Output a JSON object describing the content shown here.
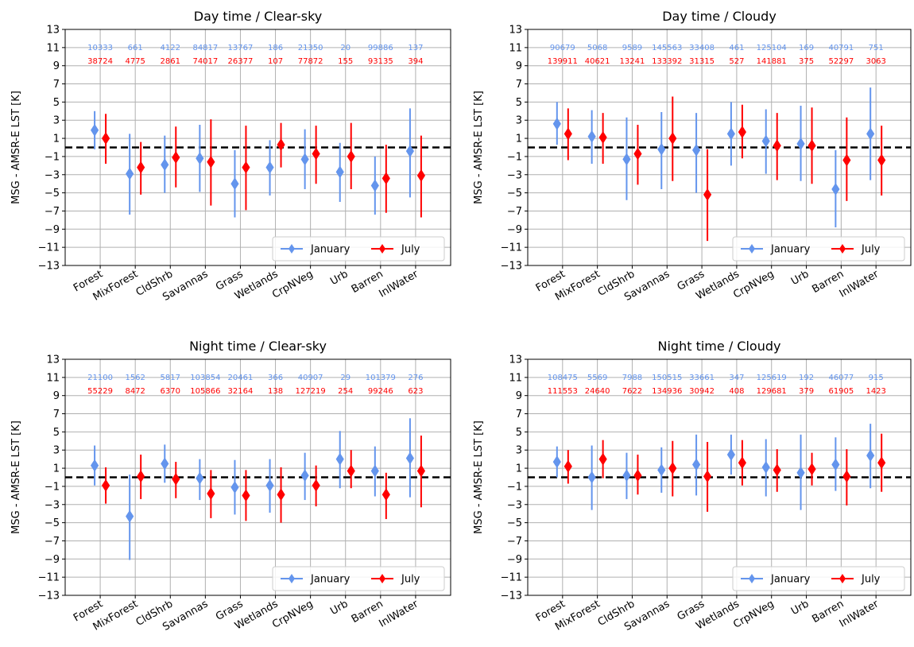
{
  "colors": {
    "january": "#6495ED",
    "july": "#FF0000",
    "grid": "#b0b0b0",
    "zero_line": "#000000"
  },
  "chart_data": [
    {
      "type": "scatter",
      "title": "Day time / Clear-sky",
      "ylabel": "MSG - AMSR-E LST [K]",
      "ylim": [
        -13,
        13
      ],
      "yticks": [
        "13",
        "11",
        "9",
        "7",
        "5",
        "3",
        "1",
        "−1",
        "−3",
        "−5",
        "−7",
        "−9",
        "−11",
        "−13"
      ],
      "categories": [
        "Forest",
        "MixForest",
        "CldShrb",
        "Savannas",
        "Grass",
        "Wetlands",
        "CrpNVeg",
        "Urb",
        "Barren",
        "InlWater"
      ],
      "grid": true,
      "reference_line": 0,
      "legend_position": "lower-right",
      "series": [
        {
          "name": "January",
          "mean": [
            1.9,
            -2.9,
            -1.9,
            -1.2,
            -4.0,
            -2.2,
            -1.3,
            -2.7,
            -4.2,
            -0.4
          ],
          "lower": [
            -0.2,
            -7.4,
            -5.0,
            -4.9,
            -7.7,
            -5.3,
            -4.6,
            -6.0,
            -7.4,
            -5.5
          ],
          "upper": [
            4.0,
            1.5,
            1.3,
            2.5,
            -0.3,
            0.8,
            2.0,
            0.5,
            -1.0,
            4.3
          ],
          "counts": [
            "10333",
            "661",
            "4122",
            "84817",
            "13767",
            "186",
            "21350",
            "20",
            "99886",
            "137"
          ]
        },
        {
          "name": "July",
          "mean": [
            1.0,
            -2.2,
            -1.1,
            -1.6,
            -2.2,
            0.3,
            -0.7,
            -1.0,
            -3.4,
            -3.1
          ],
          "lower": [
            -1.8,
            -5.2,
            -4.4,
            -6.4,
            -6.9,
            -2.2,
            -4.0,
            -4.6,
            -7.2,
            -7.7
          ],
          "upper": [
            3.7,
            0.6,
            2.3,
            3.1,
            2.4,
            2.7,
            2.4,
            2.7,
            0.3,
            1.3
          ],
          "counts": [
            "38724",
            "4775",
            "2861",
            "74017",
            "26377",
            "107",
            "77872",
            "155",
            "93135",
            "394"
          ]
        }
      ]
    },
    {
      "type": "scatter",
      "title": "Day time / Cloudy",
      "ylabel": "MSG - AMSR-E LST [K]",
      "ylim": [
        -13,
        13
      ],
      "yticks": [
        "13",
        "11",
        "9",
        "7",
        "5",
        "3",
        "1",
        "−1",
        "−3",
        "−5",
        "−7",
        "−9",
        "−11",
        "−13"
      ],
      "categories": [
        "Forest",
        "MixForest",
        "CldShrb",
        "Savannas",
        "Grass",
        "Wetlands",
        "CrpNVeg",
        "Urb",
        "Barren",
        "InlWater"
      ],
      "grid": true,
      "reference_line": 0,
      "legend_position": "lower-right",
      "series": [
        {
          "name": "January",
          "mean": [
            2.6,
            1.2,
            -1.3,
            -0.2,
            -0.3,
            1.5,
            0.7,
            0.4,
            -4.6,
            1.5
          ],
          "lower": [
            0.3,
            -1.8,
            -5.8,
            -4.6,
            -5.0,
            -2.0,
            -2.9,
            -3.7,
            -8.8,
            -3.6
          ],
          "upper": [
            5.0,
            4.1,
            3.3,
            3.9,
            3.8,
            5.0,
            4.2,
            4.6,
            -0.3,
            6.6
          ],
          "counts": [
            "90679",
            "5068",
            "9589",
            "145563",
            "33408",
            "461",
            "125104",
            "169",
            "40791",
            "751"
          ]
        },
        {
          "name": "July",
          "mean": [
            1.5,
            1.1,
            -0.7,
            1.0,
            -5.2,
            1.7,
            0.2,
            0.2,
            -1.4,
            -1.4
          ],
          "lower": [
            -1.4,
            -1.8,
            -4.1,
            -3.7,
            -10.3,
            -1.2,
            -3.6,
            -4.0,
            -5.9,
            -5.3
          ],
          "upper": [
            4.3,
            3.8,
            2.5,
            5.6,
            -0.2,
            4.7,
            3.8,
            4.4,
            3.3,
            2.4
          ],
          "counts": [
            "139911",
            "40621",
            "13241",
            "133392",
            "31315",
            "527",
            "141881",
            "375",
            "52297",
            "3063"
          ]
        }
      ]
    },
    {
      "type": "scatter",
      "title": "Night time / Clear-sky",
      "ylabel": "MSG - AMSR-E LST [K]",
      "ylim": [
        -13,
        13
      ],
      "yticks": [
        "13",
        "11",
        "9",
        "7",
        "5",
        "3",
        "1",
        "−1",
        "−3",
        "−5",
        "−7",
        "−9",
        "−11",
        "−13"
      ],
      "categories": [
        "Forest",
        "MixForest",
        "CldShrb",
        "Savannas",
        "Grass",
        "Wetlands",
        "CrpNVeg",
        "Urb",
        "Barren",
        "InlWater"
      ],
      "grid": true,
      "reference_line": 0,
      "legend_position": "lower-right",
      "series": [
        {
          "name": "January",
          "mean": [
            1.3,
            -4.3,
            1.5,
            -0.1,
            -1.1,
            -0.9,
            0.2,
            2.0,
            0.7,
            2.1
          ],
          "lower": [
            -0.9,
            -9.1,
            -0.6,
            -2.5,
            -4.1,
            -3.9,
            -2.5,
            -1.2,
            -2.1,
            -2.2
          ],
          "upper": [
            3.5,
            0.3,
            3.6,
            2.0,
            1.9,
            2.0,
            2.7,
            5.1,
            3.4,
            6.5
          ],
          "counts": [
            "21100",
            "1562",
            "5817",
            "103854",
            "20461",
            "366",
            "40907",
            "29",
            "101379",
            "276"
          ]
        },
        {
          "name": "July",
          "mean": [
            -0.9,
            0.1,
            -0.2,
            -1.8,
            -2.0,
            -1.9,
            -0.9,
            0.7,
            -1.9,
            0.7
          ],
          "lower": [
            -2.9,
            -2.4,
            -2.3,
            -4.5,
            -4.8,
            -5.0,
            -3.2,
            -1.2,
            -4.6,
            -3.3
          ],
          "upper": [
            1.1,
            2.5,
            1.7,
            0.8,
            0.8,
            1.1,
            1.3,
            3.0,
            0.5,
            4.6
          ],
          "counts": [
            "55229",
            "8472",
            "6370",
            "105866",
            "32164",
            "138",
            "127219",
            "254",
            "99246",
            "623"
          ]
        }
      ]
    },
    {
      "type": "scatter",
      "title": "Night time / Cloudy",
      "ylabel": "MSG - AMSR-E LST [K]",
      "ylim": [
        -13,
        13
      ],
      "yticks": [
        "13",
        "11",
        "9",
        "7",
        "5",
        "3",
        "1",
        "−1",
        "−3",
        "−5",
        "−7",
        "−9",
        "−11",
        "−13"
      ],
      "categories": [
        "Forest",
        "MixForest",
        "CldShrb",
        "Savannas",
        "Grass",
        "Wetlands",
        "CrpNVeg",
        "Urb",
        "Barren",
        "InlWater"
      ],
      "grid": true,
      "reference_line": 0,
      "legend_position": "lower-right",
      "series": [
        {
          "name": "January",
          "mean": [
            1.7,
            0.0,
            0.2,
            0.8,
            1.4,
            2.5,
            1.1,
            0.5,
            1.4,
            2.4
          ],
          "lower": [
            0.0,
            -3.6,
            -2.4,
            -1.7,
            -2.0,
            0.3,
            -2.1,
            -3.6,
            -1.5,
            -1.2
          ],
          "upper": [
            3.4,
            3.5,
            2.7,
            3.3,
            4.7,
            4.7,
            4.2,
            4.7,
            4.4,
            5.9
          ],
          "counts": [
            "108475",
            "5569",
            "7988",
            "150515",
            "33661",
            "347",
            "125619",
            "192",
            "46077",
            "915"
          ]
        },
        {
          "name": "July",
          "mean": [
            1.2,
            2.0,
            0.2,
            1.0,
            0.1,
            1.6,
            0.8,
            0.9,
            0.1,
            1.6
          ],
          "lower": [
            -0.7,
            -0.1,
            -1.9,
            -2.1,
            -3.8,
            -0.9,
            -1.6,
            -0.9,
            -3.1,
            -1.6
          ],
          "upper": [
            3.0,
            4.1,
            2.5,
            4.0,
            3.9,
            4.1,
            3.1,
            2.7,
            3.1,
            4.8
          ],
          "counts": [
            "111553",
            "24640",
            "7622",
            "134936",
            "30942",
            "408",
            "129681",
            "379",
            "61905",
            "1423"
          ]
        }
      ]
    }
  ]
}
